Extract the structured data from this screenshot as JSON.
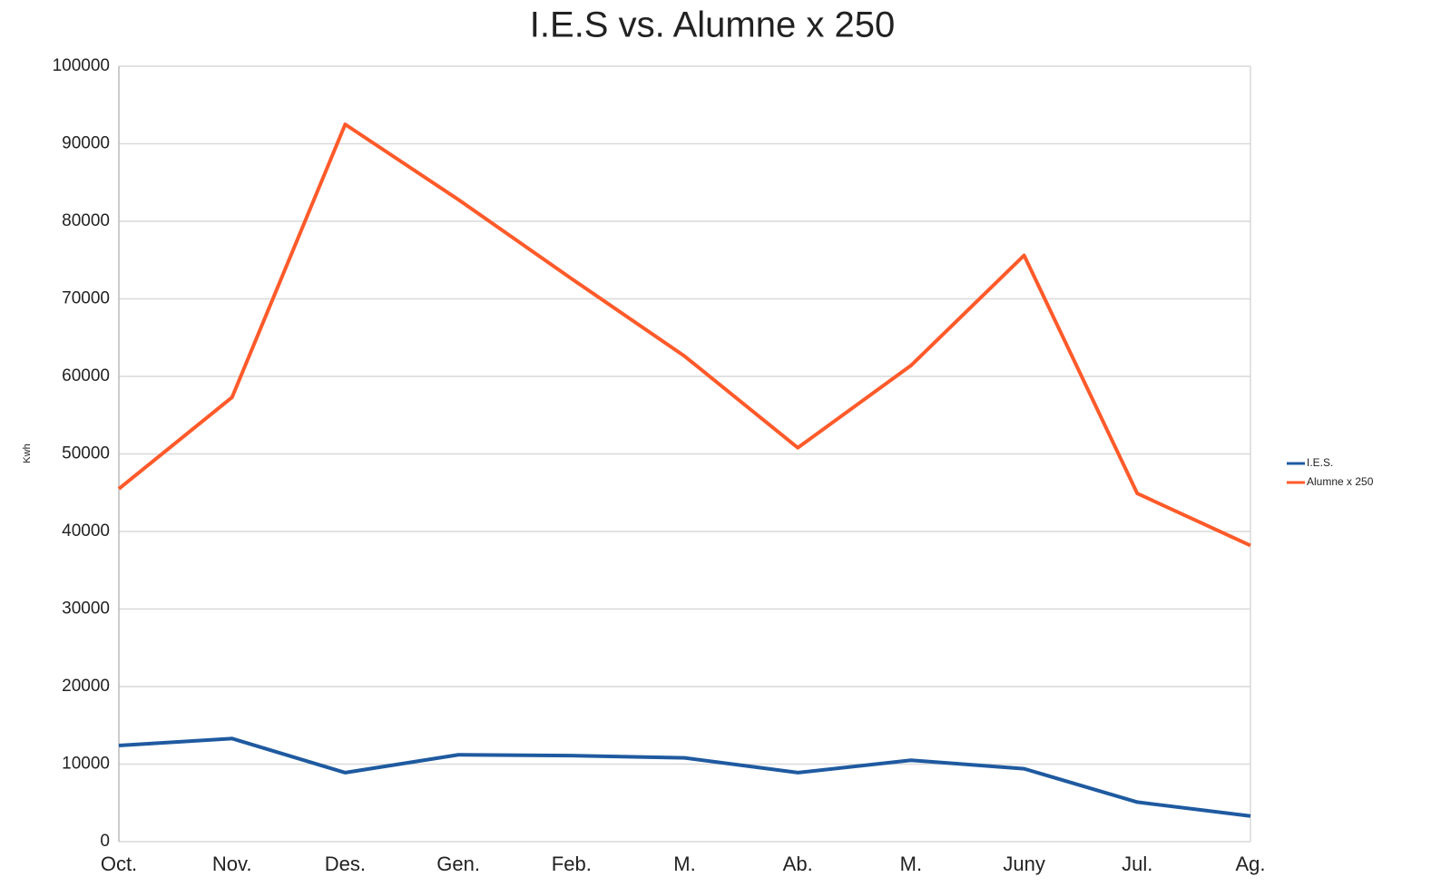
{
  "chart_data": {
    "type": "line",
    "title": "I.E.S vs. Alumne x 250",
    "y_label": "Kwh",
    "categories": [
      "Oct.",
      "Nov.",
      "Des.",
      "Gen.",
      "Feb.",
      "M.",
      "Ab.",
      "M.",
      "Juny",
      "Jul.",
      "Ag."
    ],
    "series": [
      {
        "name": "I.E.S.",
        "color": "#1f5aa0",
        "values": [
          12400,
          13300,
          8900,
          11200,
          11100,
          10800,
          8900,
          10500,
          9400,
          5100,
          3300
        ]
      },
      {
        "name": "Alumne x 250",
        "color": "#ff5a2a",
        "values": [
          45500,
          57300,
          92500,
          82800,
          72600,
          62600,
          50800,
          61400,
          75600,
          44900,
          38200
        ]
      }
    ],
    "ylim": [
      0,
      100000
    ],
    "yticks": [
      0,
      10000,
      20000,
      30000,
      40000,
      50000,
      60000,
      70000,
      80000,
      90000,
      100000
    ],
    "grid": true,
    "legend": "right"
  }
}
